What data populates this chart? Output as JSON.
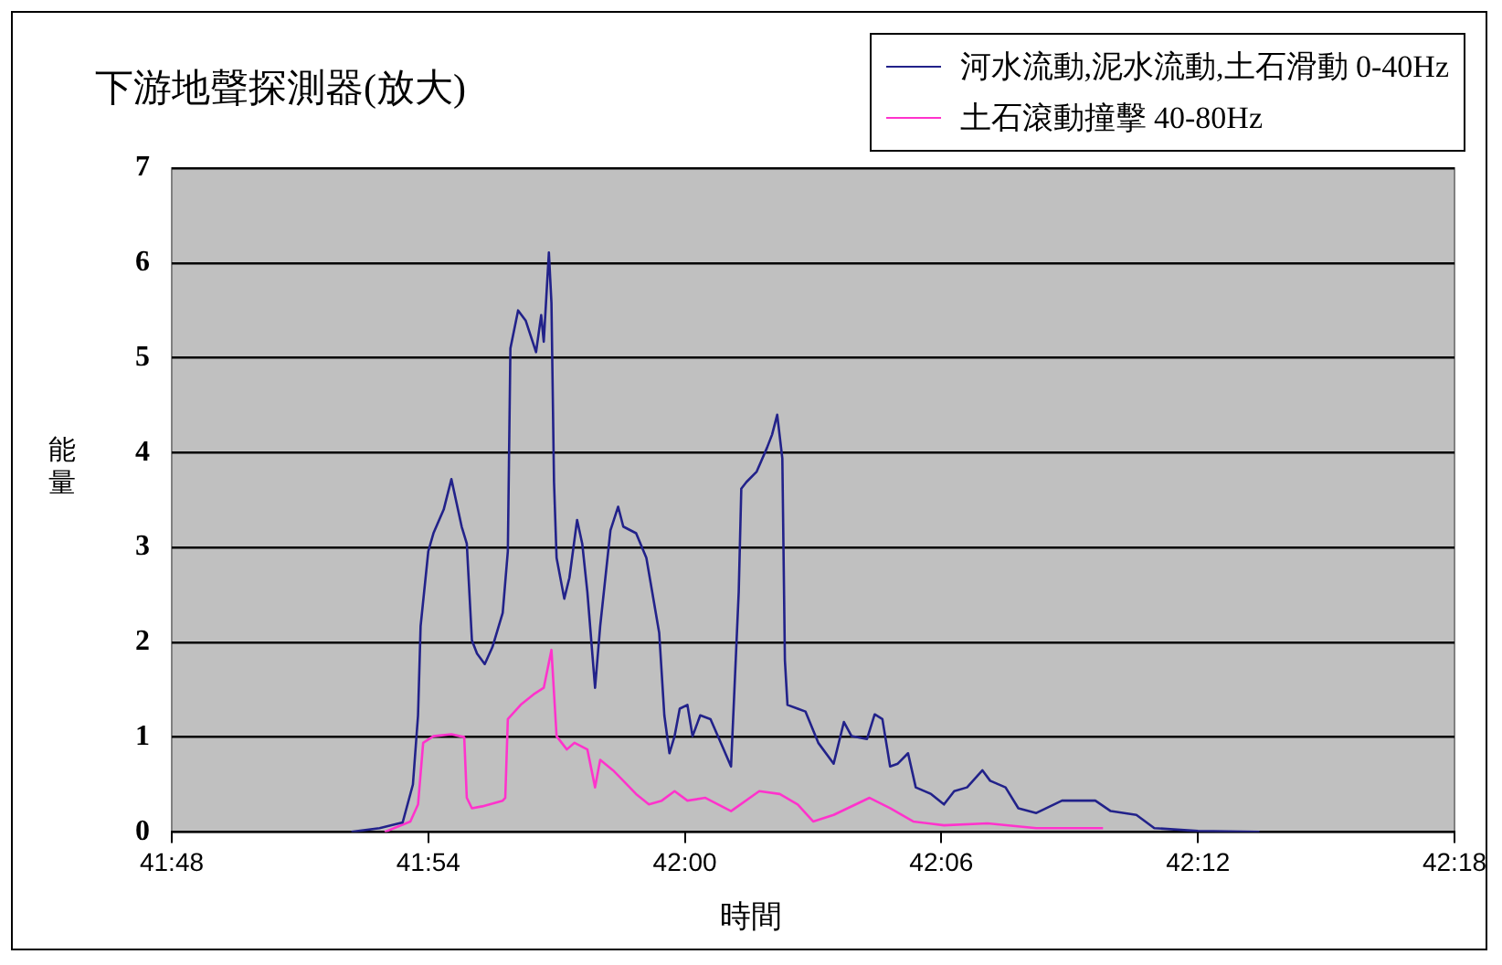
{
  "chart_data": {
    "type": "line",
    "title": "下游地聲探測器(放大)",
    "xlabel": "時間",
    "ylabel": "能量",
    "xlim": [
      41.8,
      42.3
    ],
    "xticks": [
      {
        "value": 41.8,
        "label": "41:48"
      },
      {
        "value": 41.9,
        "label": "41:54"
      },
      {
        "value": 42.0,
        "label": "42:00"
      },
      {
        "value": 42.1,
        "label": "42:06"
      },
      {
        "value": 42.2,
        "label": "42:12"
      },
      {
        "value": 42.3,
        "label": "42:18"
      }
    ],
    "ylim": [
      0,
      7
    ],
    "yticks": [
      0,
      1,
      2,
      3,
      4,
      5,
      6,
      7
    ],
    "grid": "y",
    "legend": "top right",
    "marker": "none",
    "line_style": "solid",
    "series": [
      {
        "name": "河水流動,泥水流動,土石滑動 0-40Hz",
        "color": "#22228a",
        "x": [
          41.87,
          41.881,
          41.89,
          41.894,
          41.896,
          41.897,
          41.9,
          41.902,
          41.906,
          41.909,
          41.911,
          41.913,
          41.915,
          41.917,
          41.919,
          41.922,
          41.925,
          41.929,
          41.931,
          41.932,
          41.935,
          41.938,
          41.942,
          41.944,
          41.945,
          41.947,
          41.948,
          41.949,
          41.95,
          41.953,
          41.955,
          41.958,
          41.96,
          41.962,
          41.965,
          41.967,
          41.971,
          41.974,
          41.976,
          41.981,
          41.985,
          41.99,
          41.992,
          41.994,
          41.996,
          41.998,
          42.001,
          42.003,
          42.006,
          42.01,
          42.014,
          42.018,
          42.021,
          42.022,
          42.024,
          42.028,
          42.032,
          42.034,
          42.036,
          42.038,
          42.039,
          42.04,
          42.044,
          42.047,
          42.052,
          42.058,
          42.062,
          42.065,
          42.071,
          42.074,
          42.077,
          42.08,
          42.083,
          42.087,
          42.09,
          42.096,
          42.101,
          42.105,
          42.11,
          42.116,
          42.119,
          42.125,
          42.13,
          42.137,
          42.147,
          42.16,
          42.166,
          42.176,
          42.183,
          42.2,
          42.224
        ],
        "values": [
          0,
          0.04,
          0.1,
          0.5,
          1.23,
          2.17,
          2.96,
          3.15,
          3.4,
          3.72,
          3.47,
          3.22,
          3.04,
          2.02,
          1.88,
          1.77,
          1.95,
          2.31,
          2.96,
          5.1,
          5.5,
          5.39,
          5.06,
          5.45,
          5.17,
          6.11,
          5.58,
          3.69,
          2.89,
          2.46,
          2.68,
          3.29,
          3.04,
          2.53,
          1.52,
          2.17,
          3.18,
          3.43,
          3.22,
          3.15,
          2.89,
          2.1,
          1.23,
          0.83,
          1.01,
          1.3,
          1.34,
          1.01,
          1.23,
          1.19,
          0.94,
          0.69,
          2.53,
          3.62,
          3.69,
          3.8,
          4.05,
          4.19,
          4.4,
          3.94,
          1.81,
          1.34,
          1.3,
          1.27,
          0.94,
          0.72,
          1.16,
          1.01,
          0.98,
          1.24,
          1.19,
          0.69,
          0.72,
          0.83,
          0.47,
          0.4,
          0.29,
          0.43,
          0.47,
          0.65,
          0.54,
          0.47,
          0.25,
          0.2,
          0.33,
          0.33,
          0.22,
          0.18,
          0.04,
          0.01,
          0
        ]
      },
      {
        "name": "土石滾動撞擊 40-80Hz",
        "color": "#ff33cc",
        "x": [
          41.883,
          41.893,
          41.896,
          41.898,
          41.902,
          41.909,
          41.914,
          41.915,
          41.917,
          41.921,
          41.929,
          41.93,
          41.931,
          41.936,
          41.941,
          41.945,
          41.948,
          41.95,
          41.954,
          41.957,
          41.962,
          41.965,
          41.967,
          41.972,
          41.976,
          41.981,
          41.986,
          41.991,
          41.996,
          42.001,
          42.008,
          42.018,
          42.029,
          42.037,
          42.044,
          42.05,
          42.058,
          42.072,
          42.08,
          42.089,
          42.101,
          42.118,
          42.137,
          42.163
        ],
        "values": [
          0,
          0.11,
          0.29,
          0.94,
          1.01,
          1.03,
          1.0,
          0.36,
          0.25,
          0.27,
          0.33,
          0.36,
          1.19,
          1.34,
          1.45,
          1.52,
          1.92,
          1.01,
          0.87,
          0.94,
          0.87,
          0.47,
          0.76,
          0.65,
          0.54,
          0.4,
          0.29,
          0.33,
          0.43,
          0.33,
          0.36,
          0.22,
          0.43,
          0.4,
          0.29,
          0.11,
          0.18,
          0.36,
          0.25,
          0.11,
          0.07,
          0.09,
          0.04,
          0.04
        ]
      }
    ]
  }
}
